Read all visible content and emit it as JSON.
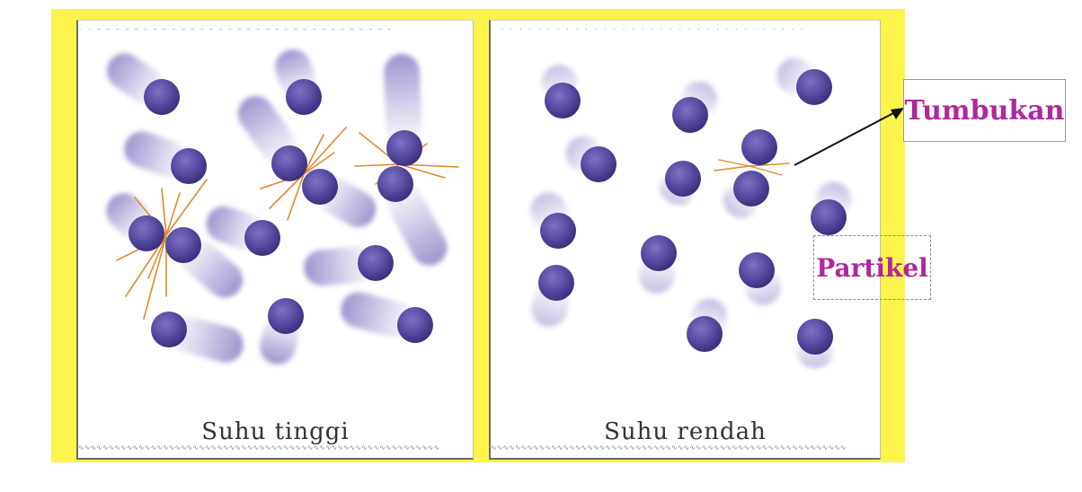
{
  "panels": {
    "left": {
      "caption": "Suhu tinggi"
    },
    "right": {
      "caption": "Suhu rendah"
    }
  },
  "labels": {
    "collision": "Tumbukan",
    "particle": "Partikel"
  },
  "colors": {
    "frame": "#fcf44a",
    "particle": "#5b4ea6",
    "trail": "#8a80c4",
    "spark": "#e08a2e",
    "label_text": "#b0279f"
  }
}
